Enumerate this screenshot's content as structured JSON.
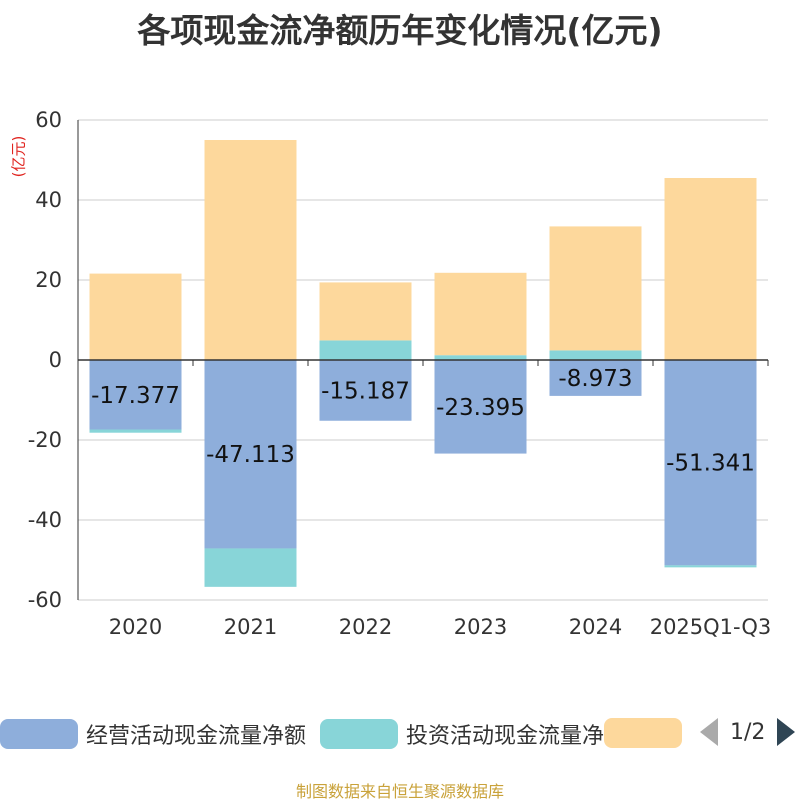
{
  "title": "各项现金流净额历年变化情况(亿元)",
  "unit_label": "(亿元)",
  "colors": {
    "operating": "#8eaedb",
    "investing": "#88d5d8",
    "third": "#fdd89c",
    "axis": "#333333",
    "grid": "#cccccc"
  },
  "chart_data": {
    "type": "bar",
    "stacked": true,
    "categories": [
      "2020",
      "2021",
      "2022",
      "2023",
      "2024",
      "2025Q1-Q3"
    ],
    "ylim": [
      -60,
      60
    ],
    "yticks": [
      60,
      40,
      20,
      0,
      -20,
      -40,
      -60
    ],
    "grid": true,
    "legend_position": "bottom",
    "series": [
      {
        "name": "经营活动现金流量净额",
        "values": [
          -17.377,
          -47.113,
          -15.187,
          -23.395,
          -8.973,
          -51.341
        ],
        "labels": [
          "-17.377",
          "-47.113",
          "-15.187",
          "-23.395",
          "-8.973",
          "-51.341"
        ]
      },
      {
        "name": "投资活动现金流量净额",
        "values": [
          -0.8,
          -9.6,
          4.9,
          1.2,
          2.4,
          -0.5
        ]
      },
      {
        "name": "",
        "values": [
          21.6,
          55.0,
          14.5,
          20.6,
          31.0,
          45.5
        ]
      }
    ]
  },
  "legend": {
    "items": [
      "经营活动现金流量净额",
      "投资活动现金流量净额",
      ""
    ],
    "page": "1/2"
  },
  "source": "制图数据来自恒生聚源数据库"
}
